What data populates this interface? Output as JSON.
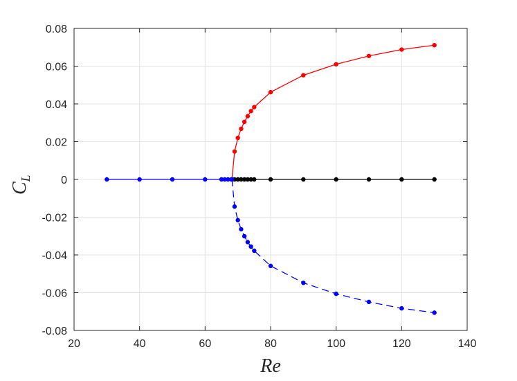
{
  "chart_data": {
    "type": "line",
    "title": "",
    "xlabel": "Re",
    "ylabel_main": "C",
    "ylabel_sub": "L",
    "xlim": [
      20,
      140
    ],
    "ylim": [
      -0.08,
      0.08
    ],
    "grid": true,
    "xticks": [
      20,
      40,
      60,
      80,
      100,
      120,
      140
    ],
    "xtick_labels": [
      "20",
      "40",
      "60",
      "80",
      "100",
      "120",
      "140"
    ],
    "yticks": [
      -0.08,
      -0.06,
      -0.04,
      -0.02,
      0,
      0.02,
      0.04,
      0.06,
      0.08
    ],
    "ytick_labels": [
      "-0.08",
      "-0.06",
      "-0.04",
      "-0.02",
      "0",
      "0.02",
      "0.04",
      "0.06",
      "0.08"
    ],
    "series": [
      {
        "color": "#0000ff",
        "dash": "none",
        "x": [
          30,
          40,
          50,
          60,
          65,
          66,
          67,
          68
        ],
        "y": [
          0,
          0,
          0,
          0,
          0,
          0,
          0,
          0
        ]
      },
      {
        "color": "#ff0000",
        "dash": "none",
        "x": [
          68.2,
          69,
          70,
          71,
          72,
          73,
          74,
          75,
          80,
          90,
          100,
          110,
          120,
          130
        ],
        "y": [
          0,
          0.0148,
          0.022,
          0.0268,
          0.0305,
          0.0335,
          0.0362,
          0.0383,
          0.0462,
          0.0552,
          0.061,
          0.0654,
          0.0688,
          0.0711
        ]
      },
      {
        "color": "#000000",
        "dash": "none",
        "x": [
          69,
          70,
          71,
          72,
          73,
          74,
          75,
          80,
          90,
          100,
          110,
          120,
          130
        ],
        "y": [
          0,
          0,
          0,
          0,
          0,
          0,
          0,
          0,
          0,
          0,
          0,
          0,
          0
        ]
      },
      {
        "color": "#0000ff",
        "dash": "dashed",
        "x": [
          68.2,
          69,
          70,
          71,
          72,
          73,
          74,
          75,
          80,
          90,
          100,
          110,
          120,
          130
        ],
        "y": [
          0,
          -0.0144,
          -0.0216,
          -0.0264,
          -0.0301,
          -0.0332,
          -0.0356,
          -0.0378,
          -0.0458,
          -0.0548,
          -0.0606,
          -0.0649,
          -0.0683,
          -0.0706
        ]
      }
    ]
  }
}
